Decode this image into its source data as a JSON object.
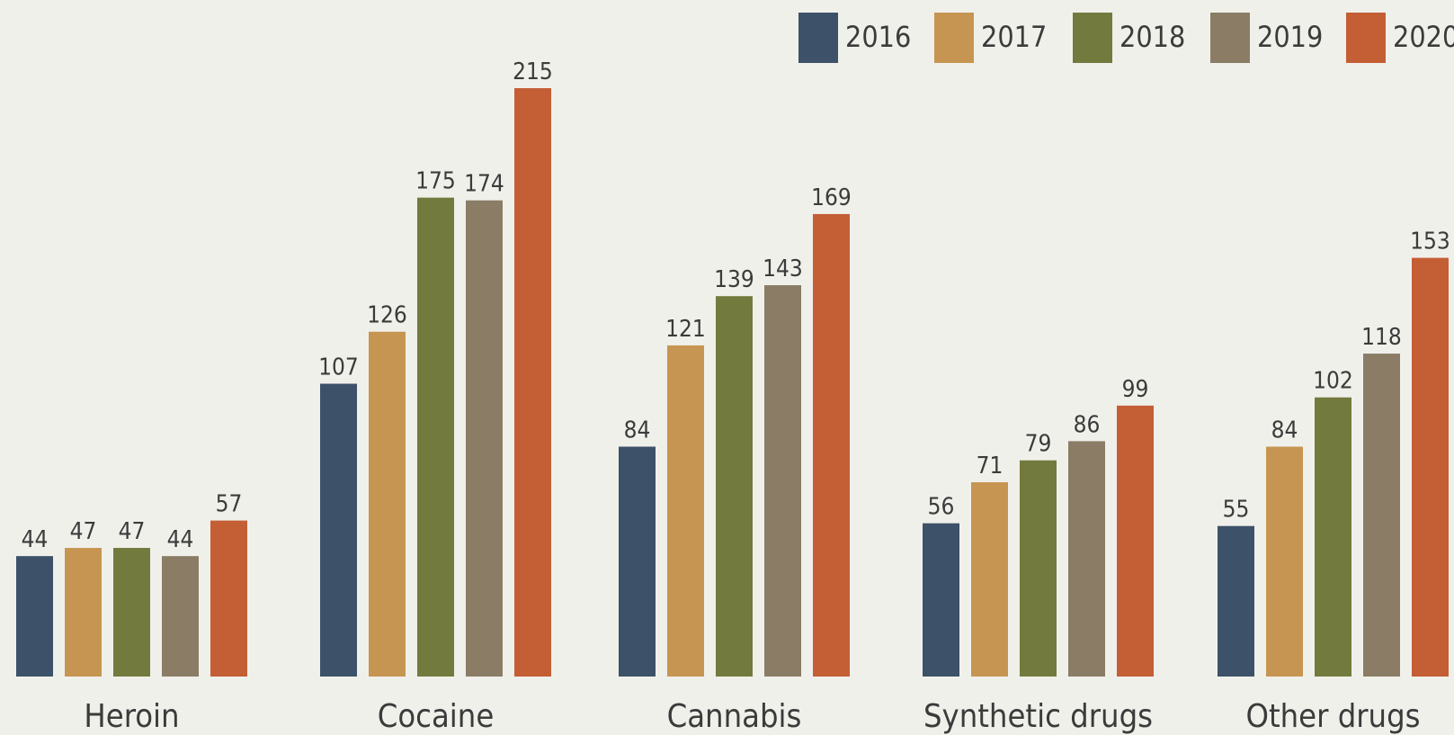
{
  "chart_data": {
    "type": "bar",
    "title": "",
    "xlabel": "",
    "ylabel": "",
    "ylim": [
      0,
      215
    ],
    "grid": false,
    "legend_position": "top-right",
    "categories": [
      "Heroin",
      "Cocaine",
      "Cannabis",
      "Synthetic drugs",
      "Other drugs"
    ],
    "series": [
      {
        "name": "2016",
        "color": "#3d5168",
        "values": [
          44,
          107,
          84,
          56,
          55
        ]
      },
      {
        "name": "2017",
        "color": "#c79552",
        "values": [
          47,
          126,
          121,
          71,
          84
        ]
      },
      {
        "name": "2018",
        "color": "#737a3d",
        "values": [
          47,
          175,
          139,
          79,
          102
        ]
      },
      {
        "name": "2019",
        "color": "#8a7c65",
        "values": [
          44,
          174,
          143,
          86,
          118
        ]
      },
      {
        "name": "2020",
        "color": "#c45e35",
        "values": [
          57,
          215,
          169,
          99,
          153
        ]
      }
    ]
  }
}
